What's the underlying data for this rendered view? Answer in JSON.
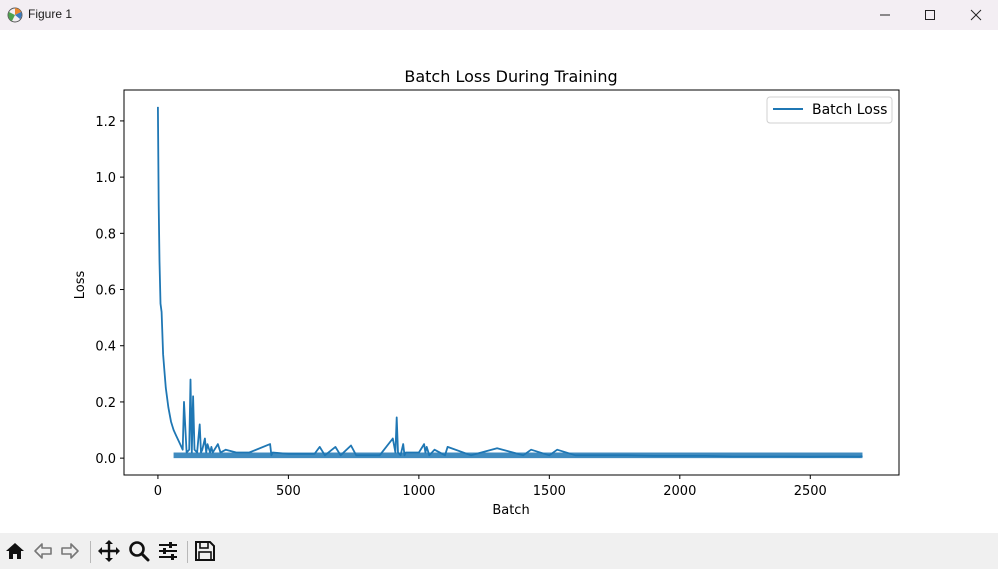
{
  "window": {
    "title": "Figure 1",
    "controls": [
      "minimize",
      "maximize",
      "close"
    ]
  },
  "toolbar": {
    "buttons": [
      {
        "name": "home",
        "icon": "home-icon"
      },
      {
        "name": "back",
        "icon": "arrow-left-icon"
      },
      {
        "name": "forward",
        "icon": "arrow-right-icon"
      },
      {
        "name": "pan",
        "icon": "move-icon"
      },
      {
        "name": "zoom",
        "icon": "magnifier-icon"
      },
      {
        "name": "configure-subplots",
        "icon": "sliders-icon"
      },
      {
        "name": "save",
        "icon": "floppy-disk-icon"
      }
    ]
  },
  "chart_data": {
    "type": "line",
    "title": "Batch Loss During Training",
    "xlabel": "Batch",
    "ylabel": "Loss",
    "xlim": [
      -130,
      2840
    ],
    "ylim": [
      -0.06,
      1.31
    ],
    "xticks": [
      0,
      500,
      1000,
      1500,
      2000,
      2500
    ],
    "xtick_labels": [
      "0",
      "500",
      "1000",
      "1500",
      "2000",
      "2500"
    ],
    "yticks": [
      0.0,
      0.2,
      0.4,
      0.6,
      0.8,
      1.0,
      1.2
    ],
    "ytick_labels": [
      "0.0",
      "0.2",
      "0.4",
      "0.6",
      "0.8",
      "1.0",
      "1.2"
    ],
    "grid": false,
    "legend_position": "top-right",
    "series": [
      {
        "name": "Batch Loss",
        "color": "#1f77b4",
        "x": [
          0,
          3,
          6,
          10,
          14,
          18,
          20,
          24,
          30,
          40,
          50,
          60,
          70,
          80,
          90,
          95,
          100,
          110,
          120,
          125,
          130,
          135,
          140,
          150,
          160,
          165,
          170,
          180,
          185,
          190,
          200,
          205,
          210,
          230,
          240,
          260,
          300,
          350,
          430,
          435,
          440,
          500,
          600,
          620,
          640,
          680,
          700,
          740,
          760,
          800,
          850,
          900,
          910,
          915,
          920,
          930,
          940,
          945,
          950,
          1000,
          1020,
          1025,
          1030,
          1040,
          1060,
          1100,
          1110,
          1200,
          1300,
          1400,
          1430,
          1500,
          1530,
          1600,
          1700,
          1800,
          1900,
          2000,
          2100,
          2200,
          2300,
          2400,
          2500,
          2600,
          2690,
          2700
        ],
        "y": [
          1.25,
          0.9,
          0.7,
          0.55,
          0.52,
          0.42,
          0.37,
          0.32,
          0.25,
          0.18,
          0.13,
          0.1,
          0.08,
          0.06,
          0.04,
          0.03,
          0.2,
          0.02,
          0.03,
          0.28,
          0.02,
          0.22,
          0.03,
          0.02,
          0.12,
          0.02,
          0.03,
          0.07,
          0.02,
          0.05,
          0.02,
          0.04,
          0.02,
          0.05,
          0.02,
          0.03,
          0.02,
          0.02,
          0.05,
          0.01,
          0.02,
          0.015,
          0.015,
          0.04,
          0.01,
          0.04,
          0.01,
          0.045,
          0.01,
          0.01,
          0.01,
          0.07,
          0.02,
          0.145,
          0.02,
          0.01,
          0.05,
          0.01,
          0.02,
          0.02,
          0.05,
          0.02,
          0.04,
          0.01,
          0.03,
          0.01,
          0.04,
          0.01,
          0.035,
          0.01,
          0.03,
          0.01,
          0.03,
          0.01,
          0.01,
          0.01,
          0.008,
          0.008,
          0.008,
          0.006,
          0.006,
          0.006,
          0.005,
          0.006,
          0.005,
          0.008
        ]
      }
    ]
  }
}
